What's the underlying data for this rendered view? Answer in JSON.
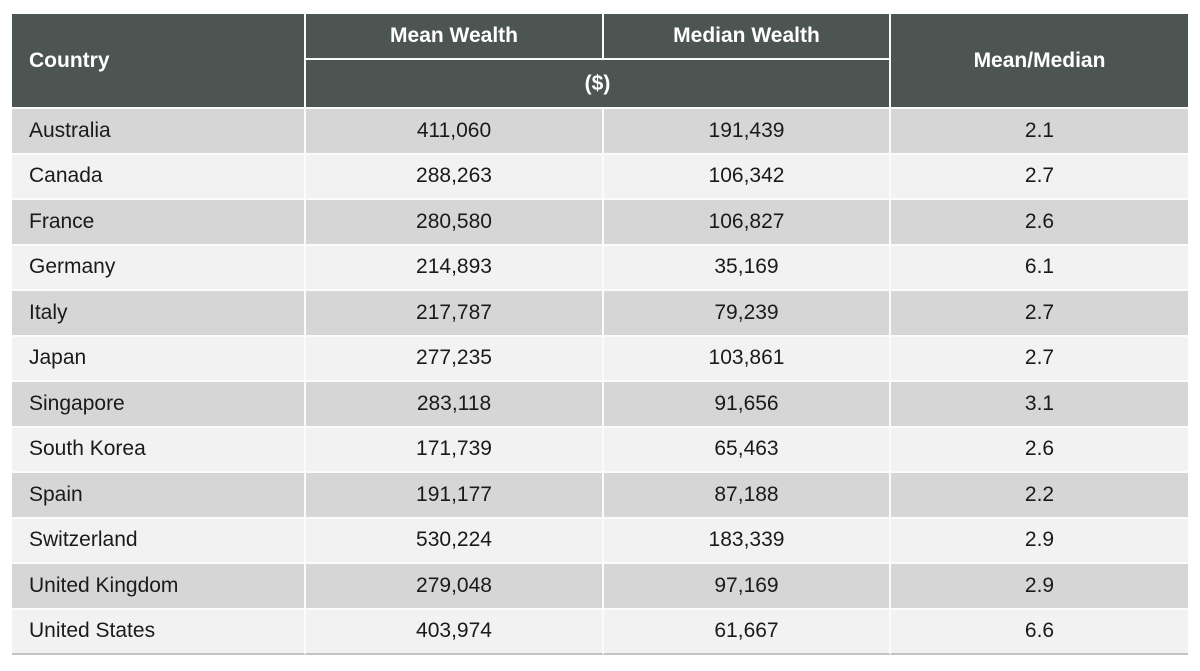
{
  "table": {
    "headers": {
      "country": "Country",
      "mean_wealth": "Mean Wealth",
      "median_wealth": "Median Wealth",
      "unit": "($)",
      "mean_median": "Mean/Median"
    },
    "rows": [
      {
        "country": "Australia",
        "mean": "411,060",
        "median": "191,439",
        "ratio": "2.1"
      },
      {
        "country": "Canada",
        "mean": "288,263",
        "median": "106,342",
        "ratio": "2.7"
      },
      {
        "country": "France",
        "mean": "280,580",
        "median": "106,827",
        "ratio": "2.6"
      },
      {
        "country": "Germany",
        "mean": "214,893",
        "median": "35,169",
        "ratio": "6.1"
      },
      {
        "country": "Italy",
        "mean": "217,787",
        "median": "79,239",
        "ratio": "2.7"
      },
      {
        "country": "Japan",
        "mean": "277,235",
        "median": "103,861",
        "ratio": "2.7"
      },
      {
        "country": "Singapore",
        "mean": "283,118",
        "median": "91,656",
        "ratio": "3.1"
      },
      {
        "country": "South Korea",
        "mean": "171,739",
        "median": "65,463",
        "ratio": "2.6"
      },
      {
        "country": "Spain",
        "mean": "191,177",
        "median": "87,188",
        "ratio": "2.2"
      },
      {
        "country": "Switzerland",
        "mean": "530,224",
        "median": "183,339",
        "ratio": "2.9"
      },
      {
        "country": "United Kingdom",
        "mean": "279,048",
        "median": "97,169",
        "ratio": "2.9"
      },
      {
        "country": "United States",
        "mean": "403,974",
        "median": "61,667",
        "ratio": "6.6"
      }
    ]
  },
  "colors": {
    "header_bg": "#4d5552",
    "header_text": "#ffffff",
    "row_odd": "#d6d6d6",
    "row_even": "#f2f2f2",
    "body_text": "#1a1a1a",
    "cell_border": "#fbfbfb",
    "table_bottom_border": "#c4c4c4"
  },
  "chart_data": {
    "type": "table",
    "columns": [
      "Country",
      "Mean Wealth ($)",
      "Median Wealth ($)",
      "Mean/Median"
    ],
    "rows": [
      [
        "Australia",
        411060,
        191439,
        2.1
      ],
      [
        "Canada",
        288263,
        106342,
        2.7
      ],
      [
        "France",
        280580,
        106827,
        2.6
      ],
      [
        "Germany",
        214893,
        35169,
        6.1
      ],
      [
        "Italy",
        217787,
        79239,
        2.7
      ],
      [
        "Japan",
        277235,
        103861,
        2.7
      ],
      [
        "Singapore",
        283118,
        91656,
        3.1
      ],
      [
        "South Korea",
        171739,
        65463,
        2.6
      ],
      [
        "Spain",
        191177,
        87188,
        2.2
      ],
      [
        "Switzerland",
        530224,
        183339,
        2.9
      ],
      [
        "United Kingdom",
        279048,
        97169,
        2.9
      ],
      [
        "United States",
        403974,
        61667,
        6.6
      ]
    ]
  }
}
